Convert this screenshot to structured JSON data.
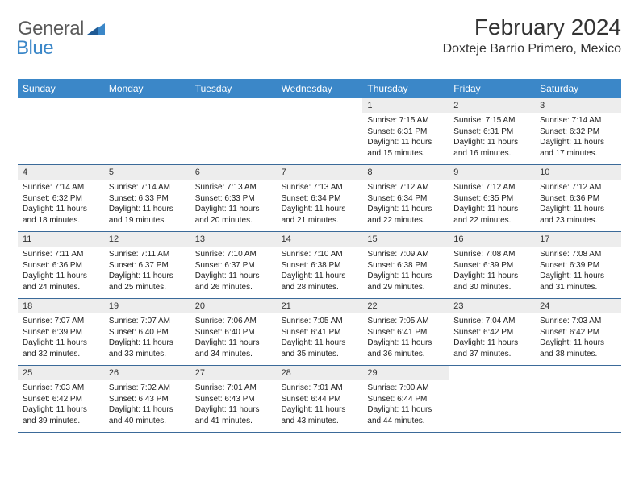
{
  "logo": {
    "general": "General",
    "blue": "Blue"
  },
  "title": "February 2024",
  "location": "Doxteje Barrio Primero, Mexico",
  "colors": {
    "header_bg": "#3b87c8",
    "header_text": "#ffffff",
    "daynum_bg": "#ededed",
    "week_border": "#3b6a99",
    "text": "#222222"
  },
  "day_names": [
    "Sunday",
    "Monday",
    "Tuesday",
    "Wednesday",
    "Thursday",
    "Friday",
    "Saturday"
  ],
  "weeks": [
    [
      {
        "n": "",
        "sr": "",
        "ss": "",
        "dl": ""
      },
      {
        "n": "",
        "sr": "",
        "ss": "",
        "dl": ""
      },
      {
        "n": "",
        "sr": "",
        "ss": "",
        "dl": ""
      },
      {
        "n": "",
        "sr": "",
        "ss": "",
        "dl": ""
      },
      {
        "n": "1",
        "sr": "Sunrise: 7:15 AM",
        "ss": "Sunset: 6:31 PM",
        "dl": "Daylight: 11 hours and 15 minutes."
      },
      {
        "n": "2",
        "sr": "Sunrise: 7:15 AM",
        "ss": "Sunset: 6:31 PM",
        "dl": "Daylight: 11 hours and 16 minutes."
      },
      {
        "n": "3",
        "sr": "Sunrise: 7:14 AM",
        "ss": "Sunset: 6:32 PM",
        "dl": "Daylight: 11 hours and 17 minutes."
      }
    ],
    [
      {
        "n": "4",
        "sr": "Sunrise: 7:14 AM",
        "ss": "Sunset: 6:32 PM",
        "dl": "Daylight: 11 hours and 18 minutes."
      },
      {
        "n": "5",
        "sr": "Sunrise: 7:14 AM",
        "ss": "Sunset: 6:33 PM",
        "dl": "Daylight: 11 hours and 19 minutes."
      },
      {
        "n": "6",
        "sr": "Sunrise: 7:13 AM",
        "ss": "Sunset: 6:33 PM",
        "dl": "Daylight: 11 hours and 20 minutes."
      },
      {
        "n": "7",
        "sr": "Sunrise: 7:13 AM",
        "ss": "Sunset: 6:34 PM",
        "dl": "Daylight: 11 hours and 21 minutes."
      },
      {
        "n": "8",
        "sr": "Sunrise: 7:12 AM",
        "ss": "Sunset: 6:34 PM",
        "dl": "Daylight: 11 hours and 22 minutes."
      },
      {
        "n": "9",
        "sr": "Sunrise: 7:12 AM",
        "ss": "Sunset: 6:35 PM",
        "dl": "Daylight: 11 hours and 22 minutes."
      },
      {
        "n": "10",
        "sr": "Sunrise: 7:12 AM",
        "ss": "Sunset: 6:36 PM",
        "dl": "Daylight: 11 hours and 23 minutes."
      }
    ],
    [
      {
        "n": "11",
        "sr": "Sunrise: 7:11 AM",
        "ss": "Sunset: 6:36 PM",
        "dl": "Daylight: 11 hours and 24 minutes."
      },
      {
        "n": "12",
        "sr": "Sunrise: 7:11 AM",
        "ss": "Sunset: 6:37 PM",
        "dl": "Daylight: 11 hours and 25 minutes."
      },
      {
        "n": "13",
        "sr": "Sunrise: 7:10 AM",
        "ss": "Sunset: 6:37 PM",
        "dl": "Daylight: 11 hours and 26 minutes."
      },
      {
        "n": "14",
        "sr": "Sunrise: 7:10 AM",
        "ss": "Sunset: 6:38 PM",
        "dl": "Daylight: 11 hours and 28 minutes."
      },
      {
        "n": "15",
        "sr": "Sunrise: 7:09 AM",
        "ss": "Sunset: 6:38 PM",
        "dl": "Daylight: 11 hours and 29 minutes."
      },
      {
        "n": "16",
        "sr": "Sunrise: 7:08 AM",
        "ss": "Sunset: 6:39 PM",
        "dl": "Daylight: 11 hours and 30 minutes."
      },
      {
        "n": "17",
        "sr": "Sunrise: 7:08 AM",
        "ss": "Sunset: 6:39 PM",
        "dl": "Daylight: 11 hours and 31 minutes."
      }
    ],
    [
      {
        "n": "18",
        "sr": "Sunrise: 7:07 AM",
        "ss": "Sunset: 6:39 PM",
        "dl": "Daylight: 11 hours and 32 minutes."
      },
      {
        "n": "19",
        "sr": "Sunrise: 7:07 AM",
        "ss": "Sunset: 6:40 PM",
        "dl": "Daylight: 11 hours and 33 minutes."
      },
      {
        "n": "20",
        "sr": "Sunrise: 7:06 AM",
        "ss": "Sunset: 6:40 PM",
        "dl": "Daylight: 11 hours and 34 minutes."
      },
      {
        "n": "21",
        "sr": "Sunrise: 7:05 AM",
        "ss": "Sunset: 6:41 PM",
        "dl": "Daylight: 11 hours and 35 minutes."
      },
      {
        "n": "22",
        "sr": "Sunrise: 7:05 AM",
        "ss": "Sunset: 6:41 PM",
        "dl": "Daylight: 11 hours and 36 minutes."
      },
      {
        "n": "23",
        "sr": "Sunrise: 7:04 AM",
        "ss": "Sunset: 6:42 PM",
        "dl": "Daylight: 11 hours and 37 minutes."
      },
      {
        "n": "24",
        "sr": "Sunrise: 7:03 AM",
        "ss": "Sunset: 6:42 PM",
        "dl": "Daylight: 11 hours and 38 minutes."
      }
    ],
    [
      {
        "n": "25",
        "sr": "Sunrise: 7:03 AM",
        "ss": "Sunset: 6:42 PM",
        "dl": "Daylight: 11 hours and 39 minutes."
      },
      {
        "n": "26",
        "sr": "Sunrise: 7:02 AM",
        "ss": "Sunset: 6:43 PM",
        "dl": "Daylight: 11 hours and 40 minutes."
      },
      {
        "n": "27",
        "sr": "Sunrise: 7:01 AM",
        "ss": "Sunset: 6:43 PM",
        "dl": "Daylight: 11 hours and 41 minutes."
      },
      {
        "n": "28",
        "sr": "Sunrise: 7:01 AM",
        "ss": "Sunset: 6:44 PM",
        "dl": "Daylight: 11 hours and 43 minutes."
      },
      {
        "n": "29",
        "sr": "Sunrise: 7:00 AM",
        "ss": "Sunset: 6:44 PM",
        "dl": "Daylight: 11 hours and 44 minutes."
      },
      {
        "n": "",
        "sr": "",
        "ss": "",
        "dl": ""
      },
      {
        "n": "",
        "sr": "",
        "ss": "",
        "dl": ""
      }
    ]
  ]
}
